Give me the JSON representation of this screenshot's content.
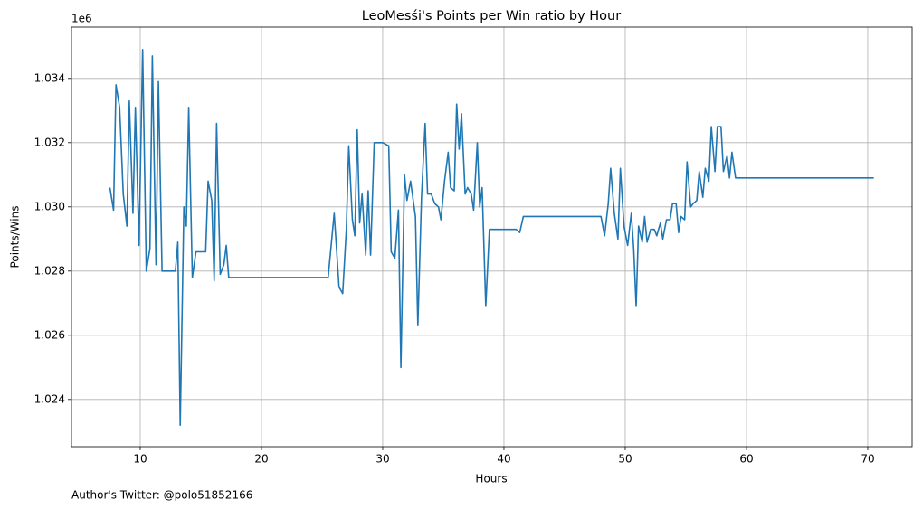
{
  "chart_data": {
    "type": "line",
    "title": "LeoMesśi's Points per Win ratio by Hour",
    "x_label": "Hours",
    "y_label": "Points/Wins",
    "y_offset_label": "1e6",
    "annotation": "Author's Twitter: @polo51852166",
    "color": "#1f77b4",
    "grid": true,
    "xlim": [
      4.33,
      73.66
    ],
    "xticks": [
      10,
      20,
      30,
      40,
      50,
      60,
      70
    ],
    "ylim": [
      1022530,
      1035600
    ],
    "yticks": [
      {
        "value": 1024000,
        "label": "1.024"
      },
      {
        "value": 1026000,
        "label": "1.026"
      },
      {
        "value": 1028000,
        "label": "1.028"
      },
      {
        "value": 1030000,
        "label": "1.030"
      },
      {
        "value": 1032000,
        "label": "1.032"
      },
      {
        "value": 1034000,
        "label": "1.034"
      }
    ],
    "x": [
      7.5,
      7.8,
      8.0,
      8.3,
      8.6,
      8.9,
      9.1,
      9.4,
      9.6,
      9.9,
      10.2,
      10.5,
      10.8,
      11.0,
      11.3,
      11.5,
      11.8,
      12.1,
      12.5,
      12.9,
      13.1,
      13.3,
      13.6,
      13.8,
      14.0,
      14.3,
      14.6,
      15.0,
      15.4,
      15.6,
      15.9,
      16.1,
      16.3,
      16.6,
      16.9,
      17.1,
      17.3,
      20,
      25.5,
      26.0,
      26.4,
      26.7,
      27.0,
      27.2,
      27.5,
      27.7,
      27.9,
      28.1,
      28.3,
      28.6,
      28.8,
      29.0,
      29.3,
      30.0,
      30.5,
      30.7,
      31.0,
      31.3,
      31.5,
      31.8,
      32.0,
      32.3,
      32.7,
      32.9,
      33.2,
      33.5,
      33.7,
      34.0,
      34.3,
      34.6,
      34.8,
      35.1,
      35.4,
      35.6,
      35.9,
      36.1,
      36.3,
      36.5,
      36.8,
      37.0,
      37.3,
      37.5,
      37.8,
      38.0,
      38.2,
      38.5,
      38.8,
      41.0,
      41.3,
      41.6,
      48.0,
      48.3,
      48.6,
      48.8,
      49.1,
      49.4,
      49.6,
      49.9,
      50.2,
      50.5,
      50.7,
      50.9,
      51.1,
      51.4,
      51.6,
      51.8,
      52.1,
      52.4,
      52.6,
      52.9,
      53.1,
      53.4,
      53.7,
      53.9,
      54.2,
      54.4,
      54.6,
      54.9,
      55.1,
      55.4,
      55.6,
      55.9,
      56.1,
      56.4,
      56.6,
      56.9,
      57.1,
      57.4,
      57.6,
      57.9,
      58.1,
      58.4,
      58.6,
      58.8,
      59.1,
      70.5
    ],
    "values": [
      1030600,
      1029900,
      1033800,
      1033100,
      1030400,
      1029400,
      1033300,
      1029800,
      1033100,
      1028800,
      1034900,
      1028000,
      1028700,
      1034700,
      1028200,
      1033900,
      1028000,
      1028000,
      1028000,
      1028000,
      1028900,
      1023200,
      1030000,
      1029400,
      1033100,
      1027800,
      1028600,
      1028600,
      1028600,
      1030800,
      1030200,
      1027700,
      1032600,
      1027900,
      1028200,
      1028800,
      1027800,
      1027800,
      1027800,
      1029800,
      1027500,
      1027300,
      1029300,
      1031900,
      1029600,
      1029100,
      1032400,
      1029500,
      1030400,
      1028500,
      1030500,
      1028500,
      1032000,
      1032000,
      1031900,
      1028600,
      1028400,
      1029900,
      1025000,
      1031000,
      1030200,
      1030800,
      1029700,
      1026300,
      1030300,
      1032600,
      1030400,
      1030400,
      1030100,
      1030000,
      1029600,
      1030800,
      1031700,
      1030600,
      1030500,
      1033200,
      1031800,
      1032900,
      1030400,
      1030600,
      1030400,
      1029900,
      1032000,
      1030000,
      1030600,
      1026900,
      1029300,
      1029300,
      1029200,
      1029700,
      1029700,
      1029100,
      1030100,
      1031200,
      1029800,
      1029000,
      1031200,
      1029400,
      1028800,
      1029800,
      1028700,
      1026900,
      1029400,
      1028900,
      1029700,
      1028900,
      1029300,
      1029300,
      1029100,
      1029500,
      1029000,
      1029600,
      1029600,
      1030100,
      1030100,
      1029200,
      1029700,
      1029600,
      1031400,
      1030000,
      1030100,
      1030200,
      1031100,
      1030300,
      1031200,
      1030800,
      1032500,
      1031100,
      1032500,
      1032500,
      1031100,
      1031600,
      1030900,
      1031700,
      1030900,
      1030900
    ]
  }
}
